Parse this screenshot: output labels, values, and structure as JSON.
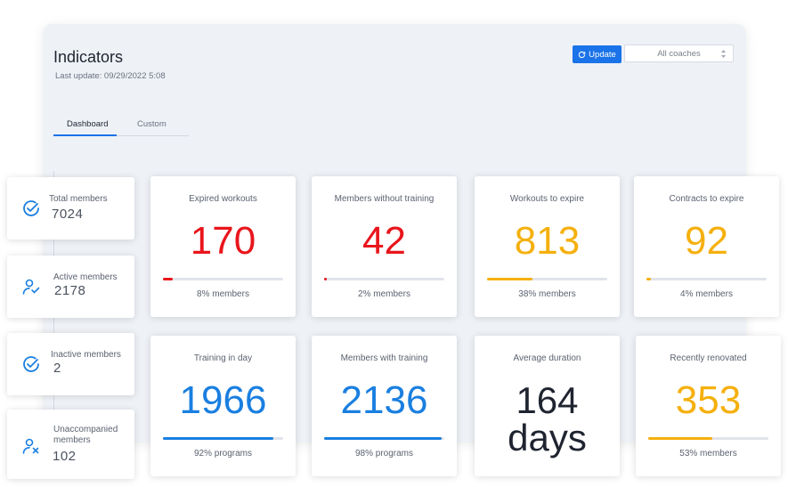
{
  "header": {
    "title": "Indicators",
    "last_update": "Last update: 09/29/2022  5:08",
    "update_button": "Update",
    "coach_select": "All coaches"
  },
  "tabs": [
    {
      "label": "Dashboard",
      "active": true
    },
    {
      "label": "Custom",
      "active": false
    }
  ],
  "side_stats": [
    {
      "label": "Total members",
      "value": "7024",
      "icon": "check-circle-icon"
    },
    {
      "label": "Active members",
      "value": "2178",
      "icon": "user-check-icon"
    },
    {
      "label": "Inactive members",
      "value": "2",
      "icon": "check-circle-icon"
    },
    {
      "label": "Unaccompanied members",
      "value": "102",
      "icon": "user-x-icon"
    }
  ],
  "kpis": [
    {
      "label": "Expired workouts",
      "value": "170",
      "value_line2": "",
      "footer": "8% members",
      "progress": 0.08,
      "color": "#e8161c"
    },
    {
      "label": "Members without training",
      "value": "42",
      "value_line2": "",
      "footer": "2% members",
      "progress": 0.02,
      "color": "#e8161c"
    },
    {
      "label": "Workouts to expire",
      "value": "813",
      "value_line2": "",
      "footer": "38% members",
      "progress": 0.38,
      "color": "#f5b00d"
    },
    {
      "label": "Contracts to expire",
      "value": "92",
      "value_line2": "",
      "footer": "4% members",
      "progress": 0.04,
      "color": "#f5b00d"
    },
    {
      "label": "Training in day",
      "value": "1966",
      "value_line2": "",
      "footer": "92% programs",
      "progress": 0.92,
      "color": "#1a7fe0"
    },
    {
      "label": "Members with training",
      "value": "2136",
      "value_line2": "",
      "footer": "98% programs",
      "progress": 0.98,
      "color": "#1a7fe0"
    },
    {
      "label": "Average duration",
      "value": "164",
      "value_line2": "days",
      "footer": "",
      "progress": null,
      "color": "#1f2430"
    },
    {
      "label": "Recently renovated",
      "value": "353",
      "value_line2": "",
      "footer": "53% members",
      "progress": 0.53,
      "color": "#f5b00d"
    }
  ],
  "colors": {
    "accent": "#1a73e8",
    "danger": "#e8161c",
    "warning": "#f5b00d",
    "value_dark": "#1f2430"
  }
}
